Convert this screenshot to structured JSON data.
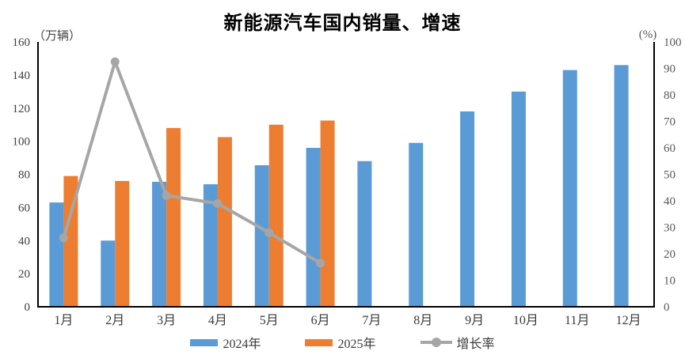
{
  "title": "新能源汽车国内销量、增速",
  "chart_data": {
    "type": "bar",
    "subtype": "grouped-bar-with-line-combo",
    "categories": [
      "1月",
      "2月",
      "3月",
      "4月",
      "5月",
      "6月",
      "7月",
      "8月",
      "9月",
      "10月",
      "11月",
      "12月"
    ],
    "series": [
      {
        "name": "2024年",
        "type": "bar",
        "axis": "left",
        "color": "#5b9bd5",
        "values": [
          63,
          40,
          75.5,
          74,
          85.5,
          96,
          88,
          99,
          118,
          130,
          143,
          146
        ]
      },
      {
        "name": "2025年",
        "type": "bar",
        "axis": "left",
        "color": "#ed7d31",
        "values": [
          79,
          76,
          108,
          102.5,
          110,
          112.5
        ]
      },
      {
        "name": "增长率",
        "type": "line",
        "axis": "right",
        "color": "#a6a6a6",
        "values": [
          26,
          92.5,
          42,
          39,
          28,
          16.5
        ]
      }
    ],
    "left_axis": {
      "unit_label": "（万辆）",
      "min": 0,
      "max": 160,
      "step": 20,
      "ticks": [
        0,
        20,
        40,
        60,
        80,
        100,
        120,
        140,
        160
      ]
    },
    "right_axis": {
      "unit_label": "(%)",
      "min": 0,
      "max": 100,
      "step": 10,
      "ticks": [
        0,
        10,
        20,
        30,
        40,
        50,
        60,
        70,
        80,
        90,
        100
      ]
    },
    "grid": false,
    "legend_position": "bottom"
  }
}
